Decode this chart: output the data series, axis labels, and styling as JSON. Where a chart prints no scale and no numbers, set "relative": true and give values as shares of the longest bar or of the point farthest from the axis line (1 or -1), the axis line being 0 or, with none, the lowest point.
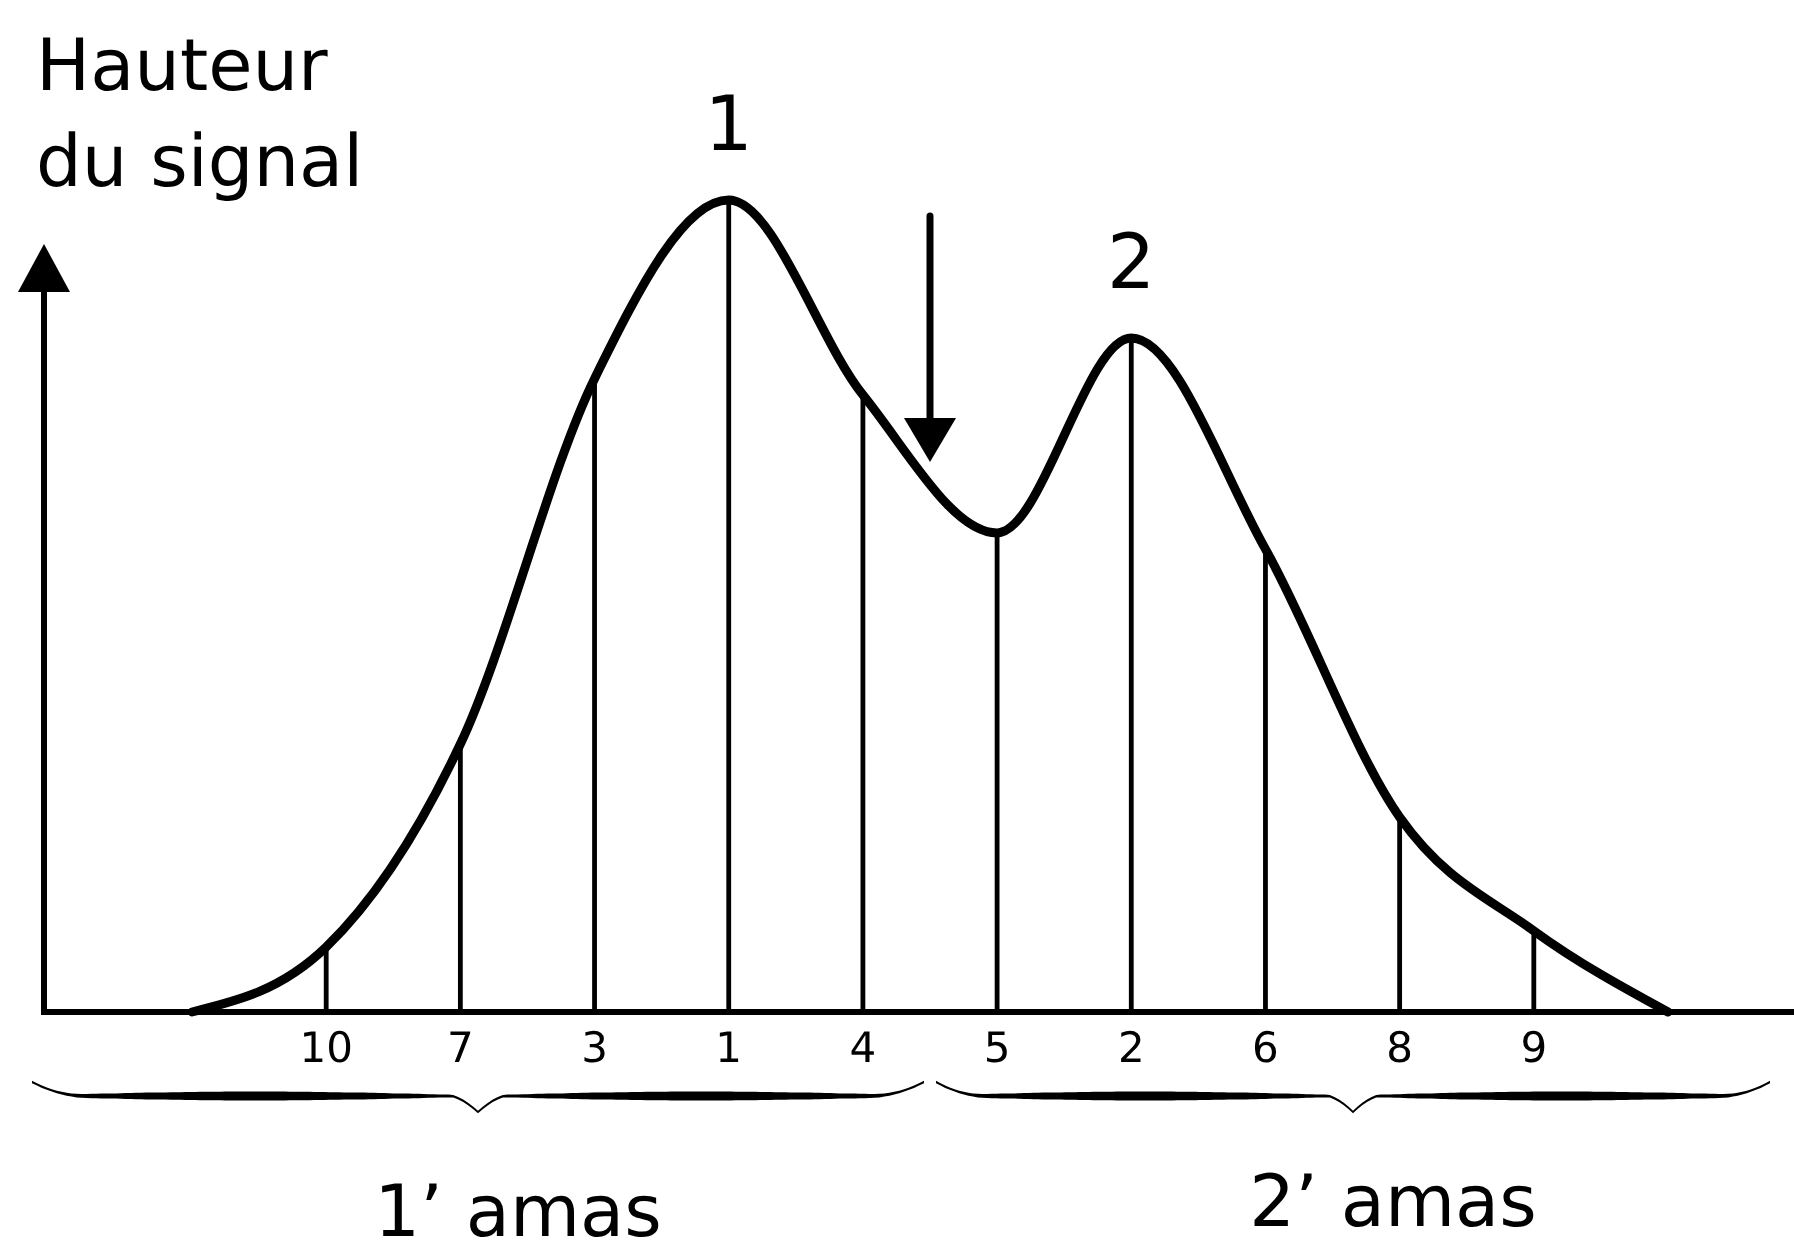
{
  "chart_data": {
    "type": "line",
    "ylabel": "Hauteur du signal",
    "relative": true,
    "categories": [
      null,
      "10",
      "7",
      "3",
      "1",
      "4",
      "5",
      "2",
      "6",
      "8",
      "9",
      null
    ],
    "series": [
      {
        "type": "bar",
        "color": "#000000",
        "values": [
          null,
          0.08,
          0.33,
          0.78,
          1,
          0.76,
          0.59,
          0.83,
          0.57,
          0.24,
          0.1,
          null
        ]
      },
      {
        "color": "#000000",
        "values": [
          0,
          0.08,
          0.33,
          0.78,
          1,
          0.76,
          0.59,
          0.83,
          0.57,
          0.24,
          0.1,
          0
        ]
      }
    ],
    "annotations": [
      {
        "text": "1",
        "x": "1",
        "y": 1
      },
      {
        "text": "2",
        "x": "2",
        "y": 0.83
      },
      "1’ amas",
      "2’ amas"
    ]
  }
}
